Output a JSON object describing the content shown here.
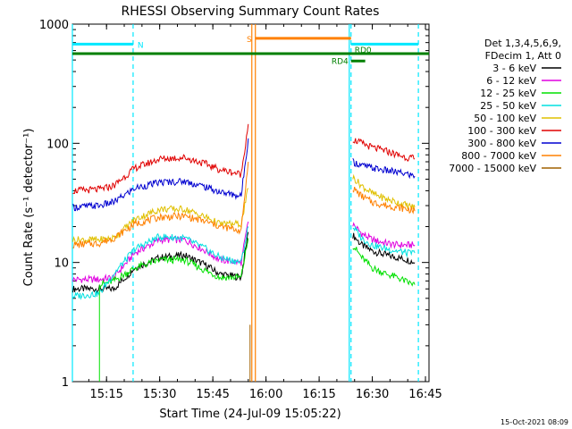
{
  "chart_data": {
    "type": "line",
    "title": "RHESSI Observing Summary Count Rates",
    "xlabel": "Start Time (24-Jul-09 15:05:22)",
    "ylabel": "Count Rate (s⁻¹ detector⁻¹)",
    "yscale": "log",
    "ylim": [
      1,
      1000
    ],
    "xlim": [
      "15:05:22",
      "16:46:00"
    ],
    "x_ticks": [
      "15:15",
      "15:30",
      "15:45",
      "16:00",
      "16:15",
      "16:30",
      "16:45"
    ],
    "y_ticks": [
      "1",
      "10",
      "100",
      "1000"
    ],
    "grid": false,
    "legend_position": "right",
    "legend_header": [
      "Det 1,3,4,5,6,9,",
      "FDecim 1, Att 0"
    ],
    "timestamp": "15-Oct-2021 08:09",
    "series": [
      {
        "name": "3 - 6 keV",
        "color": "#000000",
        "segments": [
          {
            "x": [
              "15:05:30",
              "15:13:00",
              "15:17:00",
              "15:23:00",
              "15:30:00",
              "15:37:00",
              "15:43:00",
              "15:47:00",
              "15:53:00",
              "15:55:00"
            ],
            "y": [
              6,
              6,
              6,
              9,
              11,
              11.5,
              9.5,
              8,
              7.5,
              18
            ]
          },
          {
            "x": [
              "16:24:30",
              "16:27:00",
              "16:30:00",
              "16:34:00",
              "16:37:00",
              "16:40:00",
              "16:42:00"
            ],
            "y": [
              17,
              14,
              12.5,
              11.5,
              11,
              10.5,
              10
            ]
          }
        ]
      },
      {
        "name": "6 - 12 keV",
        "color": "#e000e0",
        "segments": [
          {
            "x": [
              "15:05:30",
              "15:13:00",
              "15:17:00",
              "15:23:00",
              "15:30:00",
              "15:37:00",
              "15:43:00",
              "15:47:00",
              "15:53:00",
              "15:55:00"
            ],
            "y": [
              7.2,
              7.2,
              7.5,
              12,
              15.5,
              15.5,
              12.5,
              10.5,
              10,
              22
            ]
          },
          {
            "x": [
              "16:24:30",
              "16:27:00",
              "16:30:00",
              "16:34:00",
              "16:37:00",
              "16:40:00",
              "16:42:00"
            ],
            "y": [
              21,
              17.5,
              15.5,
              14.5,
              14,
              14,
              14
            ]
          }
        ]
      },
      {
        "name": "12 - 25 keV",
        "color": "#00e000",
        "segments": [
          {
            "x": [
              "15:13:00",
              "15:17:00",
              "15:23:00",
              "15:30:00",
              "15:37:00",
              "15:43:00",
              "15:47:00",
              "15:53:00",
              "15:55:00"
            ],
            "y": [
              6.5,
              7,
              9,
              10.5,
              10.5,
              8.5,
              7.5,
              7.5,
              16
            ]
          },
          {
            "x": [
              "16:24:30",
              "16:27:00",
              "16:30:00",
              "16:34:00",
              "16:37:00",
              "16:40:00",
              "16:42:00"
            ],
            "y": [
              14,
              11,
              9,
              8,
              7.5,
              6.8,
              6.5
            ]
          }
        ]
      },
      {
        "name": "25 - 50 keV",
        "color": "#00e0e0",
        "segments": [
          {
            "x": [
              "15:05:30",
              "15:13:00",
              "15:17:00",
              "15:23:00",
              "15:30:00",
              "15:37:00",
              "15:43:00",
              "15:47:00",
              "15:53:00",
              "15:55:00"
            ],
            "y": [
              5.2,
              5.5,
              8,
              13,
              16.5,
              16,
              13,
              11,
              10,
              20
            ]
          },
          {
            "x": [
              "16:24:30",
              "16:27:00",
              "16:30:00",
              "16:34:00",
              "16:37:00",
              "16:40:00",
              "16:42:00"
            ],
            "y": [
              20,
              16,
              14,
              13,
              12.5,
              12,
              12
            ]
          }
        ]
      },
      {
        "name": "50 - 100 keV",
        "color": "#e0c000",
        "segments": [
          {
            "x": [
              "15:05:30",
              "15:13:00",
              "15:17:00",
              "15:23:00",
              "15:30:00",
              "15:37:00",
              "15:43:00",
              "15:47:00",
              "15:53:00",
              "15:55:00"
            ],
            "y": [
              15.5,
              15.5,
              16,
              23,
              28,
              28,
              24,
              21,
              21,
              42
            ]
          },
          {
            "x": [
              "16:24:30",
              "16:27:00",
              "16:30:00",
              "16:34:00",
              "16:37:00",
              "16:40:00",
              "16:42:00"
            ],
            "y": [
              52,
              44,
              38,
              34,
              32,
              30,
              29
            ]
          }
        ]
      },
      {
        "name": "100 - 300 keV",
        "color": "#e00000",
        "segments": [
          {
            "x": [
              "15:05:30",
              "15:13:00",
              "15:17:00",
              "15:23:00",
              "15:30:00",
              "15:37:00",
              "15:43:00",
              "15:47:00",
              "15:53:00",
              "15:55:00"
            ],
            "y": [
              40,
              41,
              44,
              62,
              74,
              76,
              67,
              60,
              55,
              145
            ]
          },
          {
            "x": [
              "16:24:30",
              "16:27:00",
              "16:30:00",
              "16:34:00",
              "16:37:00",
              "16:40:00",
              "16:42:00"
            ],
            "y": [
              108,
              100,
              92,
              86,
              80,
              76,
              74
            ]
          }
        ]
      },
      {
        "name": "300 - 800 keV",
        "color": "#0000d0",
        "segments": [
          {
            "x": [
              "15:05:30",
              "15:13:00",
              "15:17:00",
              "15:23:00",
              "15:30:00",
              "15:37:00",
              "15:43:00",
              "15:47:00",
              "15:53:00",
              "15:55:00"
            ],
            "y": [
              29,
              30,
              32,
              42,
              47,
              48,
              43,
              39,
              36,
              110
            ]
          },
          {
            "x": [
              "16:24:30",
              "16:27:00",
              "16:30:00",
              "16:34:00",
              "16:37:00",
              "16:40:00",
              "16:42:00"
            ],
            "y": [
              70,
              65,
              62,
              59,
              57,
              55,
              53
            ]
          }
        ]
      },
      {
        "name": "800 - 7000 keV",
        "color": "#ff8000",
        "segments": [
          {
            "x": [
              "15:05:30",
              "15:13:00",
              "15:17:00",
              "15:23:00",
              "15:30:00",
              "15:37:00",
              "15:43:00",
              "15:47:00",
              "15:53:00",
              "15:55:00"
            ],
            "y": [
              14,
              14.5,
              16,
              21,
              24,
              24.5,
              22,
              20,
              18.5,
              70
            ]
          },
          {
            "x": [
              "16:24:30",
              "16:27:00",
              "16:30:00",
              "16:34:00",
              "16:37:00",
              "16:40:00",
              "16:42:00"
            ],
            "y": [
              42,
              36,
              32,
              30,
              29,
              28,
              27
            ]
          }
        ]
      },
      {
        "name": "7000 - 15000 keV",
        "color": "#a06000",
        "segments": []
      }
    ],
    "flags": [
      {
        "label": "N",
        "color": "#00e8ff",
        "y": 680,
        "segments": [
          [
            "15:05:22",
            "15:22:30"
          ],
          [
            "16:24:00",
            "16:43:00"
          ]
        ]
      },
      {
        "label": "S",
        "color": "#ff8000",
        "y": 760,
        "segments": [
          [
            "15:57:00",
            "16:24:00"
          ]
        ]
      },
      {
        "label": "RD0",
        "color": "#008000",
        "y": 565,
        "segments": [
          [
            "15:05:22",
            "16:46:00"
          ]
        ]
      },
      {
        "label": "RD4",
        "color": "#008000",
        "y": 490,
        "segments": [
          [
            "16:24:00",
            "16:28:00"
          ]
        ]
      }
    ],
    "vertical_lines": [
      {
        "color": "#00e8ff",
        "x": "15:05:22",
        "style": "solid"
      },
      {
        "color": "#00e8ff",
        "x": "15:22:30",
        "style": "dashed"
      },
      {
        "color": "#ff8000",
        "x": "15:56:00",
        "style": "solid"
      },
      {
        "color": "#ff8000",
        "x": "15:57:00",
        "style": "solid"
      },
      {
        "color": "#00e8ff",
        "x": "16:23:30",
        "style": "solid"
      },
      {
        "color": "#00e8ff",
        "x": "16:24:00",
        "style": "dashed"
      },
      {
        "color": "#00e8ff",
        "x": "16:43:00",
        "style": "dashed"
      }
    ]
  }
}
